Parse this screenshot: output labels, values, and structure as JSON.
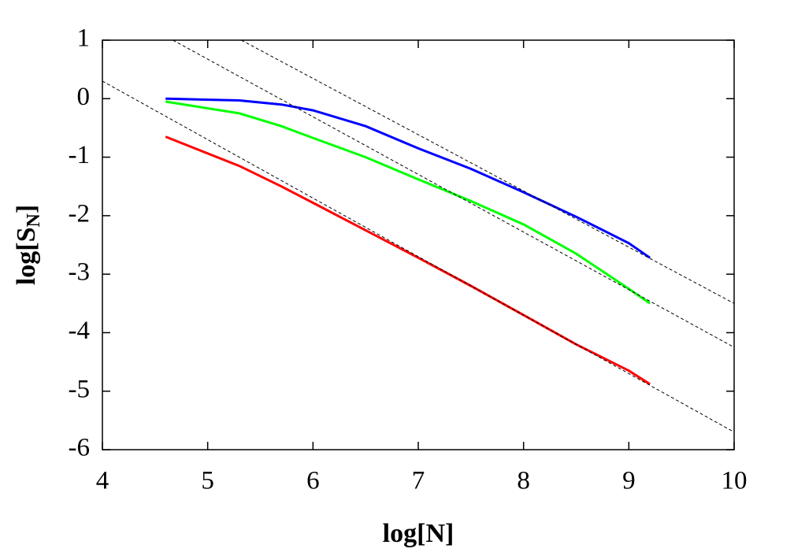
{
  "chart_data": {
    "type": "line",
    "xlabel": "log[N]",
    "ylabel": "log[S",
    "ylabel_sub": "N",
    "ylabel_end": "]",
    "xlim": [
      4,
      10
    ],
    "xticks": [
      4,
      5,
      6,
      7,
      8,
      9,
      10
    ],
    "ylim": [
      -6,
      1
    ],
    "yticks": [
      -6,
      -5,
      -4,
      -3,
      -2,
      -1,
      0,
      1
    ],
    "series": [
      {
        "color": "#0000ff",
        "x": [
          4.6,
          5.3,
          5.7,
          6,
          6.5,
          7,
          7.5,
          8,
          8.5,
          9,
          9.2
        ],
        "values": [
          0.0,
          -0.03,
          -0.1,
          -0.2,
          -0.47,
          -0.85,
          -1.2,
          -1.6,
          -2.02,
          -2.47,
          -2.72
        ]
      },
      {
        "color": "#00ff00",
        "x": [
          4.6,
          5.3,
          5.7,
          6,
          6.5,
          7,
          7.5,
          8,
          8.5,
          9,
          9.2
        ],
        "values": [
          -0.05,
          -0.25,
          -0.47,
          -0.67,
          -1.0,
          -1.38,
          -1.75,
          -2.15,
          -2.65,
          -3.25,
          -3.5
        ]
      },
      {
        "color": "#ff0000",
        "x": [
          4.6,
          5.3,
          5.7,
          6,
          6.5,
          7,
          7.5,
          8,
          8.5,
          9,
          9.2
        ],
        "values": [
          -0.65,
          -1.15,
          -1.5,
          -1.78,
          -2.25,
          -2.72,
          -3.2,
          -3.7,
          -4.2,
          -4.65,
          -4.88
        ]
      },
      {
        "color": "#000000",
        "style": "dashed",
        "x": [
          5.32,
          10
        ],
        "values": [
          1,
          -3.5
        ]
      },
      {
        "color": "#000000",
        "style": "dashed",
        "x": [
          4.67,
          10
        ],
        "values": [
          1,
          -4.25
        ]
      },
      {
        "color": "#000000",
        "style": "dashed",
        "x": [
          4,
          10
        ],
        "values": [
          0.3,
          -5.7
        ]
      }
    ]
  }
}
